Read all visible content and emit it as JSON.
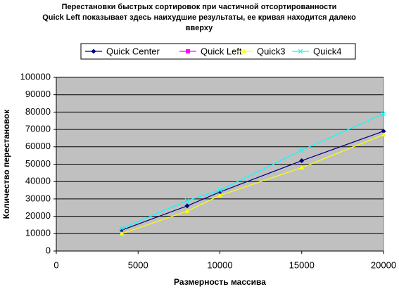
{
  "chart_data": {
    "type": "line",
    "title": [
      "Перестановки быстрых сортировок при частичной отсортированности",
      "Quick Left показывает здесь наихудшие результаты, ее кривая находится далеко",
      "вверху"
    ],
    "x_label": "Размерность массива",
    "y_label": "Количество перестановок",
    "x": [
      4000,
      8000,
      10000,
      15000,
      20000
    ],
    "series": [
      {
        "name": "Quick Center",
        "color": "#000080",
        "marker": "diamond",
        "values": [
          12000,
          26000,
          34000,
          52000,
          69000
        ]
      },
      {
        "name": "Quick Left",
        "color": "#ff00ff",
        "marker": "square",
        "values": [
          null,
          null,
          null,
          null,
          null
        ]
      },
      {
        "name": "Quick3",
        "color": "#ffff00",
        "marker": "triangle",
        "values": [
          10000,
          23000,
          32000,
          48000,
          67000
        ]
      },
      {
        "name": "Quick4",
        "color": "#00ffff",
        "marker": "x",
        "values": [
          13000,
          29000,
          35000,
          58000,
          79000
        ]
      }
    ],
    "xlim": [
      0,
      20000
    ],
    "xticks": [
      0,
      5000,
      10000,
      15000,
      20000
    ],
    "ylim": [
      0,
      100000
    ],
    "yticks": [
      0,
      10000,
      20000,
      30000,
      40000,
      50000,
      60000,
      70000,
      80000,
      90000,
      100000
    ],
    "grid": true,
    "legend": "top",
    "plot_background": "#c0c0c0"
  }
}
